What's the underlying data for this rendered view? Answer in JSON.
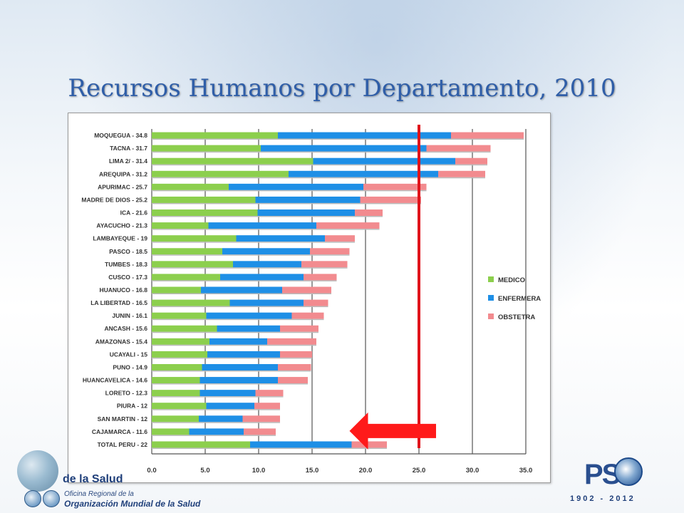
{
  "title": "Recursos Humanos por Departamento, 2010",
  "chart_data": {
    "type": "bar",
    "orientation": "horizontal",
    "stacked": true,
    "categories": [
      "MOQUEGUA - 34.8",
      "TACNA - 31.7",
      "LIMA 2/ - 31.4",
      "AREQUIPA - 31.2",
      "APURIMAC - 25.7",
      "MADRE DE DIOS - 25.2",
      "ICA - 21.6",
      "AYACUCHO - 21.3",
      "LAMBAYEQUE - 19",
      "PASCO - 18.5",
      "TUMBES - 18.3",
      "CUSCO - 17.3",
      "HUANUCO - 16.8",
      "LA LIBERTAD - 16.5",
      "JUNIN - 16.1",
      "ANCASH - 15.6",
      "AMAZONAS - 15.4",
      "UCAYALI - 15",
      "PUNO - 14.9",
      "HUANCAVELICA - 14.6",
      "LORETO - 12.3",
      "PIURA - 12",
      "SAN MARTIN - 12",
      "CAJAMARCA - 11.6",
      "TOTAL PERU - 22"
    ],
    "series": [
      {
        "name": "MEDICO",
        "color": "#8ccf4d",
        "values": [
          11.8,
          10.2,
          15.1,
          12.8,
          7.2,
          9.7,
          9.9,
          5.3,
          7.9,
          6.6,
          7.6,
          6.4,
          4.6,
          7.3,
          5.1,
          6.1,
          5.4,
          5.2,
          4.7,
          4.5,
          4.5,
          5.1,
          4.4,
          3.5,
          9.2
        ]
      },
      {
        "name": "ENFERMERA",
        "color": "#1e8fe6",
        "values": [
          16.2,
          15.5,
          13.3,
          14.0,
          12.6,
          9.8,
          9.1,
          10.1,
          8.3,
          8.2,
          6.4,
          7.8,
          7.6,
          6.9,
          8.0,
          5.9,
          5.4,
          6.8,
          7.1,
          7.3,
          5.2,
          4.5,
          4.1,
          5.1,
          9.5
        ]
      },
      {
        "name": "OBSTETRA",
        "color": "#f28b8f",
        "values": [
          6.8,
          6.0,
          3.0,
          4.4,
          5.9,
          5.7,
          2.6,
          5.9,
          2.8,
          3.7,
          4.3,
          3.1,
          4.6,
          2.3,
          3.0,
          3.6,
          4.6,
          3.0,
          3.1,
          2.8,
          2.6,
          2.4,
          3.5,
          3.0,
          3.3
        ]
      }
    ],
    "xlim": [
      0,
      35
    ],
    "x_ticks": [
      "0.0",
      "5.0",
      "10.0",
      "15.0",
      "20.0",
      "25.0",
      "30.0",
      "35.0"
    ],
    "gridlines": true,
    "legend_position": "right",
    "annotations": {
      "reference_line_value": 25,
      "reference_line_color": "#e0141b",
      "arrow_color": "#ff1a1a",
      "arrow_points_to": "TOTAL PERU - 22"
    }
  },
  "logos": {
    "left_line_1": "de la Salud",
    "left_line_2": "Oficina Regional de la",
    "left_line_3": "Organización Mundial de la Salud",
    "right_mark": "PS",
    "right_years": "1902 - 2012"
  }
}
